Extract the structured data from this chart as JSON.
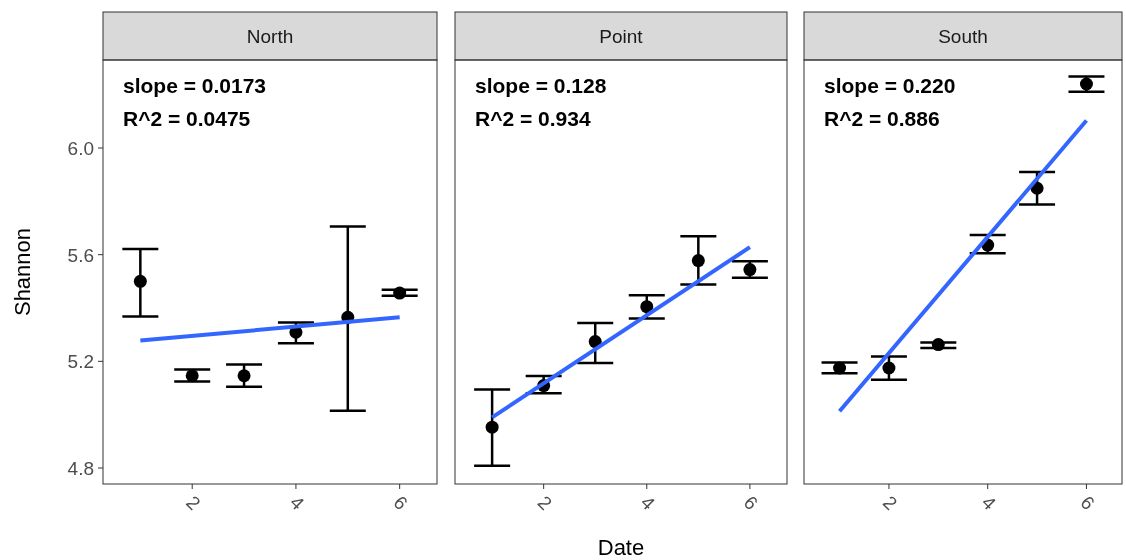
{
  "chart_data": [
    {
      "type": "scatter",
      "title": "North",
      "ylabel": "Shannon",
      "xlim": [
        0.28,
        6.72
      ],
      "ylim": [
        4.74,
        6.33
      ],
      "xticks": [
        2,
        4,
        6
      ],
      "yticks": [
        4.8,
        5.2,
        5.6,
        {
          "value": 6.0,
          "label": "6.0"
        }
      ],
      "grid": false,
      "annotations": [
        "slope = 0.0173",
        "R^2 = 0.0475"
      ],
      "series": [
        {
          "marker": "circle",
          "color": "#000000",
          "x": [
            1,
            2,
            3,
            4,
            5,
            6
          ],
          "values": [
            5.5,
            5.146,
            5.146,
            5.309,
            5.365,
            5.456
          ],
          "errors": [
            [
              5.368,
              5.621
            ],
            [
              5.124,
              5.169
            ],
            [
              5.105,
              5.188
            ],
            [
              5.268,
              5.346
            ],
            [
              5.015,
              5.706
            ],
            [
              5.446,
              5.468
            ]
          ]
        },
        {
          "type": "line",
          "marker": "none",
          "color": "#3366ff",
          "x": [
            1,
            6
          ],
          "values": [
            5.278,
            5.365
          ]
        }
      ]
    },
    {
      "type": "scatter",
      "title": "Point",
      "xlabel": "Date",
      "xlim": [
        0.28,
        6.72
      ],
      "ylim": [
        4.74,
        6.33
      ],
      "xticks": [
        2,
        4,
        6
      ],
      "tick_labels": "x",
      "grid": false,
      "annotations": [
        "slope = 0.128",
        "R^2 = 0.934"
      ],
      "series": [
        {
          "marker": "circle",
          "color": "#000000",
          "x": [
            1,
            2,
            3,
            4,
            5,
            6
          ],
          "values": [
            4.953,
            5.109,
            5.274,
            5.405,
            5.578,
            5.544
          ],
          "errors": [
            [
              4.808,
              5.094
            ],
            [
              5.08,
              5.145
            ],
            [
              5.194,
              5.344
            ],
            [
              5.361,
              5.448
            ],
            [
              5.488,
              5.669
            ],
            [
              5.513,
              5.575
            ]
          ]
        },
        {
          "type": "line",
          "marker": "none",
          "color": "#3366ff",
          "x": [
            1,
            6
          ],
          "values": [
            4.99,
            5.628
          ]
        }
      ]
    },
    {
      "type": "scatter",
      "title": "South",
      "xlim": [
        0.28,
        6.72
      ],
      "ylim": [
        4.74,
        6.33
      ],
      "xticks": [
        2,
        4,
        6
      ],
      "tick_labels": "x",
      "grid": false,
      "annotations": [
        "slope = 0.220",
        "R^2 = 0.886"
      ],
      "series": [
        {
          "marker": "circle",
          "color": "#000000",
          "x": [
            1,
            2,
            3,
            4,
            5,
            6
          ],
          "values": [
            5.175,
            5.175,
            5.263,
            5.636,
            5.849,
            6.24
          ],
          "errors": [
            [
              5.155,
              5.196
            ],
            [
              5.131,
              5.218
            ],
            [
              5.25,
              5.271
            ],
            [
              5.605,
              5.674
            ],
            [
              5.788,
              5.91
            ],
            [
              6.211,
              6.268
            ]
          ]
        },
        {
          "type": "line",
          "marker": "none",
          "color": "#3366ff",
          "x": [
            1,
            6
          ],
          "values": [
            5.013,
            6.103
          ]
        }
      ]
    }
  ]
}
